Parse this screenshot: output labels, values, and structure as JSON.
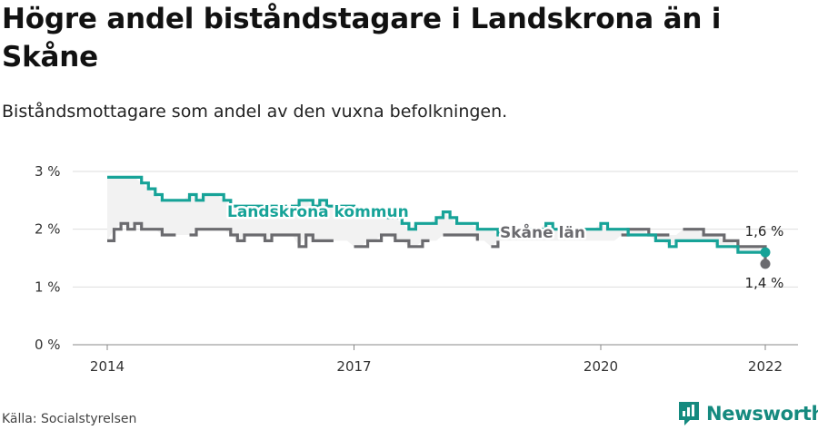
{
  "title": "Högre andel biståndstagare i Landskrona än i Skåne",
  "subtitle": "Biståndsmottagare som andel av den vuxna befolkningen.",
  "source": "Källa: Socialstyrelsen",
  "brand": "Newsworthy",
  "colors": {
    "landskrona": "#17a398",
    "skane": "#6b6b6f",
    "fill": "#f2f2f2",
    "grid": "#dddddd"
  },
  "chart_data": {
    "type": "line",
    "x_ticks": [
      "2014",
      "2017",
      "2020",
      "2022"
    ],
    "y_ticks": [
      "0 %",
      "1 %",
      "2 %",
      "3 %"
    ],
    "ylim": [
      0,
      3
    ],
    "x_range": [
      2014,
      2022
    ],
    "series": [
      {
        "name": "Landskrona kommun",
        "label": "Landskrona kommun",
        "end_label": "1,6 %",
        "color": "#17a398",
        "x": [
          2014,
          2014.083,
          2014.167,
          2014.25,
          2014.333,
          2014.417,
          2014.5,
          2014.583,
          2014.667,
          2014.75,
          2014.833,
          2014.917,
          2015,
          2015.083,
          2015.167,
          2015.25,
          2015.333,
          2015.417,
          2015.5,
          2015.583,
          2015.667,
          2015.75,
          2015.833,
          2015.917,
          2016,
          2016.083,
          2016.167,
          2016.25,
          2016.333,
          2016.417,
          2016.5,
          2016.583,
          2016.667,
          2016.75,
          2016.833,
          2016.917,
          2017,
          2017.083,
          2017.167,
          2017.25,
          2017.333,
          2017.417,
          2017.5,
          2017.583,
          2017.667,
          2017.75,
          2017.833,
          2017.917,
          2018,
          2018.083,
          2018.167,
          2018.25,
          2018.333,
          2018.417,
          2018.5,
          2018.583,
          2018.667,
          2018.75,
          2018.833,
          2018.917,
          2019,
          2019.083,
          2019.167,
          2019.25,
          2019.333,
          2019.417,
          2019.5,
          2019.583,
          2019.667,
          2019.75,
          2019.833,
          2019.917,
          2020,
          2020.083,
          2020.167,
          2020.25,
          2020.333,
          2020.417,
          2020.5,
          2020.583,
          2020.667,
          2020.75,
          2020.833,
          2020.917,
          2021,
          2021.083,
          2021.167,
          2021.25,
          2021.333,
          2021.417,
          2021.5,
          2021.583,
          2021.667,
          2021.75,
          2021.833,
          2021.917,
          2022
        ],
        "values": [
          2.9,
          2.9,
          2.9,
          2.9,
          2.9,
          2.8,
          2.7,
          2.6,
          2.5,
          2.5,
          2.5,
          2.5,
          2.6,
          2.5,
          2.6,
          2.6,
          2.6,
          2.5,
          2.4,
          2.4,
          2.4,
          2.4,
          2.4,
          2.4,
          2.4,
          2.4,
          2.3,
          2.4,
          2.5,
          2.5,
          2.4,
          2.5,
          2.4,
          2.4,
          2.4,
          2.4,
          2.3,
          2.3,
          2.3,
          2.3,
          2.3,
          2.2,
          2.2,
          2.1,
          2.0,
          2.1,
          2.1,
          2.1,
          2.2,
          2.3,
          2.2,
          2.1,
          2.1,
          2.1,
          2.0,
          2.0,
          2.0,
          1.9,
          1.9,
          1.9,
          2.0,
          2.0,
          2.0,
          2.0,
          2.1,
          2.0,
          2.0,
          2.0,
          2.0,
          2.0,
          2.0,
          2.0,
          2.1,
          2.0,
          2.0,
          2.0,
          1.9,
          1.9,
          1.9,
          1.9,
          1.8,
          1.8,
          1.7,
          1.8,
          1.8,
          1.8,
          1.8,
          1.8,
          1.8,
          1.7,
          1.7,
          1.7,
          1.6,
          1.6,
          1.6,
          1.6,
          1.6
        ]
      },
      {
        "name": "Skåne län",
        "label": "Skåne län",
        "end_label": "1,4 %",
        "color": "#6b6b6f",
        "x": [
          2014,
          2014.083,
          2014.167,
          2014.25,
          2014.333,
          2014.417,
          2014.5,
          2014.583,
          2014.667,
          2014.75,
          2014.833,
          2014.917,
          2015,
          2015.083,
          2015.167,
          2015.25,
          2015.333,
          2015.417,
          2015.5,
          2015.583,
          2015.667,
          2015.75,
          2015.833,
          2015.917,
          2016,
          2016.083,
          2016.167,
          2016.25,
          2016.333,
          2016.417,
          2016.5,
          2016.583,
          2016.667,
          2016.75,
          2016.833,
          2016.917,
          2017,
          2017.083,
          2017.167,
          2017.25,
          2017.333,
          2017.417,
          2017.5,
          2017.583,
          2017.667,
          2017.75,
          2017.833,
          2017.917,
          2018,
          2018.083,
          2018.167,
          2018.25,
          2018.333,
          2018.417,
          2018.5,
          2018.583,
          2018.667,
          2018.75,
          2018.833,
          2018.917,
          2019,
          2019.083,
          2019.167,
          2019.25,
          2019.333,
          2019.417,
          2019.5,
          2019.583,
          2019.667,
          2019.75,
          2019.833,
          2019.917,
          2020,
          2020.083,
          2020.167,
          2020.25,
          2020.333,
          2020.417,
          2020.5,
          2020.583,
          2020.667,
          2020.75,
          2020.833,
          2020.917,
          2021,
          2021.083,
          2021.167,
          2021.25,
          2021.333,
          2021.417,
          2021.5,
          2021.583,
          2021.667,
          2021.75,
          2021.833,
          2021.917,
          2022
        ],
        "values": [
          1.8,
          2.0,
          2.1,
          2.0,
          2.1,
          2.0,
          2.0,
          2.0,
          1.9,
          1.9,
          1.9,
          null,
          1.9,
          2.0,
          2.0,
          2.0,
          2.0,
          2.0,
          1.9,
          1.8,
          1.9,
          1.9,
          1.9,
          1.8,
          1.9,
          1.9,
          1.9,
          1.9,
          1.7,
          1.9,
          1.8,
          1.8,
          1.8,
          1.8,
          null,
          null,
          1.7,
          1.7,
          1.8,
          1.8,
          1.9,
          1.9,
          1.8,
          1.8,
          1.7,
          1.7,
          1.8,
          1.8,
          null,
          1.9,
          1.9,
          1.9,
          1.9,
          1.9,
          1.8,
          null,
          1.7,
          1.8,
          null,
          null,
          null,
          null,
          null,
          null,
          null,
          null,
          null,
          null,
          null,
          null,
          null,
          null,
          null,
          null,
          null,
          1.9,
          2.0,
          2.0,
          2.0,
          1.9,
          1.9,
          1.9,
          1.9,
          null,
          2.0,
          2.0,
          2.0,
          1.9,
          1.9,
          1.9,
          1.8,
          1.8,
          1.7,
          1.7,
          1.7,
          1.7,
          1.4
        ]
      }
    ],
    "grid": "horizontal",
    "legend": "inline labels"
  }
}
